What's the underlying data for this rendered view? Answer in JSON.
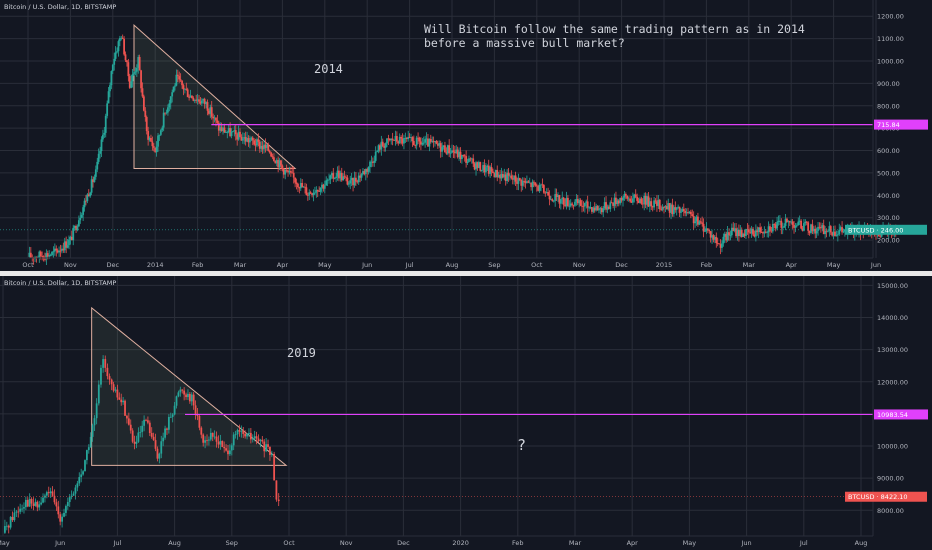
{
  "question": "Will Bitcoin follow the same trading pattern as in 2014 before a massive bull market?",
  "colors": {
    "background": "#131722",
    "grid": "#2a2e39",
    "up": "#26a69a",
    "down": "#ef5350",
    "resistance": "#e040fb",
    "triangle_stroke": "#e0b0a0",
    "triangle_fill": "rgba(150,190,140,0.10)",
    "last_price_green": "#26a69a",
    "last_price_red": "#ef5350"
  },
  "chart_data": [
    {
      "type": "candlestick",
      "symbol_line": "Bitcoin / U.S. Dollar, 1D, BITSTAMP",
      "annotation": "2014",
      "x_labels": [
        "Oct",
        "Nov",
        "Dec",
        "2014",
        "Feb",
        "Mar",
        "Apr",
        "May",
        "Jun",
        "Jul",
        "Aug",
        "Sep",
        "Oct",
        "Nov",
        "Dec",
        "2015",
        "Feb",
        "Mar",
        "Apr",
        "May",
        "Jun"
      ],
      "y_ticks": [
        200,
        300,
        400,
        500,
        600,
        700,
        800,
        900,
        1000,
        1100,
        1200
      ],
      "y_tick_labels": [
        "200.00",
        "300.00",
        "400.00",
        "500.00",
        "600.00",
        "700.00",
        "800.00",
        "900.00",
        "1000.00",
        "1100.00",
        "1200.00"
      ],
      "ylim": [
        120,
        1250
      ],
      "grid": true,
      "resistance": {
        "value": 715.84,
        "label": "715.84"
      },
      "last_price": {
        "symbol": "BTCUSD",
        "value": "246.00",
        "label": "BTCUSD · 246.00"
      },
      "triangle": {
        "apex_month": 2.5,
        "apex_price": 1160,
        "base_price": 520,
        "end_month": 6.3
      },
      "price_path": [
        [
          0,
          125
        ],
        [
          0.6,
          140
        ],
        [
          1.0,
          200
        ],
        [
          1.3,
          350
        ],
        [
          1.6,
          500
        ],
        [
          1.8,
          700
        ],
        [
          2.0,
          1000
        ],
        [
          2.2,
          1120
        ],
        [
          2.4,
          900
        ],
        [
          2.6,
          1000
        ],
        [
          2.8,
          680
        ],
        [
          3.0,
          600
        ],
        [
          3.2,
          750
        ],
        [
          3.5,
          920
        ],
        [
          3.8,
          850
        ],
        [
          4.2,
          810
        ],
        [
          4.5,
          700
        ],
        [
          5.0,
          660
        ],
        [
          5.3,
          640
        ],
        [
          5.7,
          600
        ],
        [
          6.0,
          520
        ],
        [
          6.3,
          470
        ],
        [
          6.6,
          410
        ],
        [
          7.0,
          450
        ],
        [
          7.3,
          500
        ],
        [
          7.6,
          450
        ],
        [
          8.0,
          520
        ],
        [
          8.3,
          620
        ],
        [
          8.6,
          650
        ],
        [
          9.0,
          640
        ],
        [
          9.5,
          630
        ],
        [
          10.0,
          600
        ],
        [
          10.5,
          540
        ],
        [
          11.0,
          500
        ],
        [
          11.5,
          470
        ],
        [
          12.0,
          440
        ],
        [
          12.5,
          380
        ],
        [
          13.0,
          360
        ],
        [
          13.5,
          340
        ],
        [
          14.0,
          390
        ],
        [
          14.5,
          380
        ],
        [
          15.0,
          350
        ],
        [
          15.5,
          320
        ],
        [
          16.0,
          250
        ],
        [
          16.3,
          180
        ],
        [
          16.6,
          240
        ],
        [
          17.0,
          230
        ],
        [
          17.5,
          260
        ],
        [
          18.0,
          280
        ],
        [
          18.5,
          250
        ],
        [
          19.0,
          240
        ],
        [
          19.5,
          240
        ],
        [
          20.0,
          235
        ],
        [
          20.5,
          246
        ]
      ]
    },
    {
      "type": "candlestick",
      "symbol_line": "Bitcoin / U.S. Dollar, 1D, BITSTAMP",
      "annotation": "2019",
      "question_mark": "?",
      "x_labels": [
        "May",
        "Jun",
        "Jul",
        "Aug",
        "Sep",
        "Oct",
        "Nov",
        "Dec",
        "2020",
        "Feb",
        "Mar",
        "Apr",
        "May",
        "Jun",
        "Jul",
        "Aug"
      ],
      "y_ticks": [
        8000,
        9000,
        10000,
        11000,
        12000,
        13000,
        14000,
        15000
      ],
      "y_tick_labels": [
        "8000.00",
        "9000.00",
        "10000.00",
        "11000.00",
        "12000.00",
        "13000.00",
        "14000.00",
        "15000.00"
      ],
      "ylim": [
        7200,
        15200
      ],
      "grid": true,
      "resistance": {
        "value": 10983.54,
        "label": "10983.54"
      },
      "last_price": {
        "symbol": "BTCUSD",
        "value": "8422.10",
        "label": "BTCUSD · 8422.10"
      },
      "triangle": {
        "apex_month": 1.55,
        "apex_price": 14300,
        "base_price": 9400,
        "end_month": 4.95
      },
      "price_path": [
        [
          0,
          7300
        ],
        [
          0.2,
          7900
        ],
        [
          0.4,
          8300
        ],
        [
          0.6,
          8100
        ],
        [
          0.8,
          8600
        ],
        [
          1.0,
          7800
        ],
        [
          1.2,
          8400
        ],
        [
          1.4,
          9300
        ],
        [
          1.6,
          10800
        ],
        [
          1.75,
          12800
        ],
        [
          1.9,
          11800
        ],
        [
          2.1,
          11300
        ],
        [
          2.3,
          10000
        ],
        [
          2.5,
          10800
        ],
        [
          2.7,
          9700
        ],
        [
          2.9,
          10800
        ],
        [
          3.1,
          11800
        ],
        [
          3.3,
          11500
        ],
        [
          3.5,
          10200
        ],
        [
          3.7,
          10300
        ],
        [
          3.9,
          9800
        ],
        [
          4.1,
          10400
        ],
        [
          4.3,
          10300
        ],
        [
          4.5,
          10100
        ],
        [
          4.7,
          9700
        ],
        [
          4.78,
          8300
        ],
        [
          4.82,
          8422
        ]
      ]
    }
  ]
}
